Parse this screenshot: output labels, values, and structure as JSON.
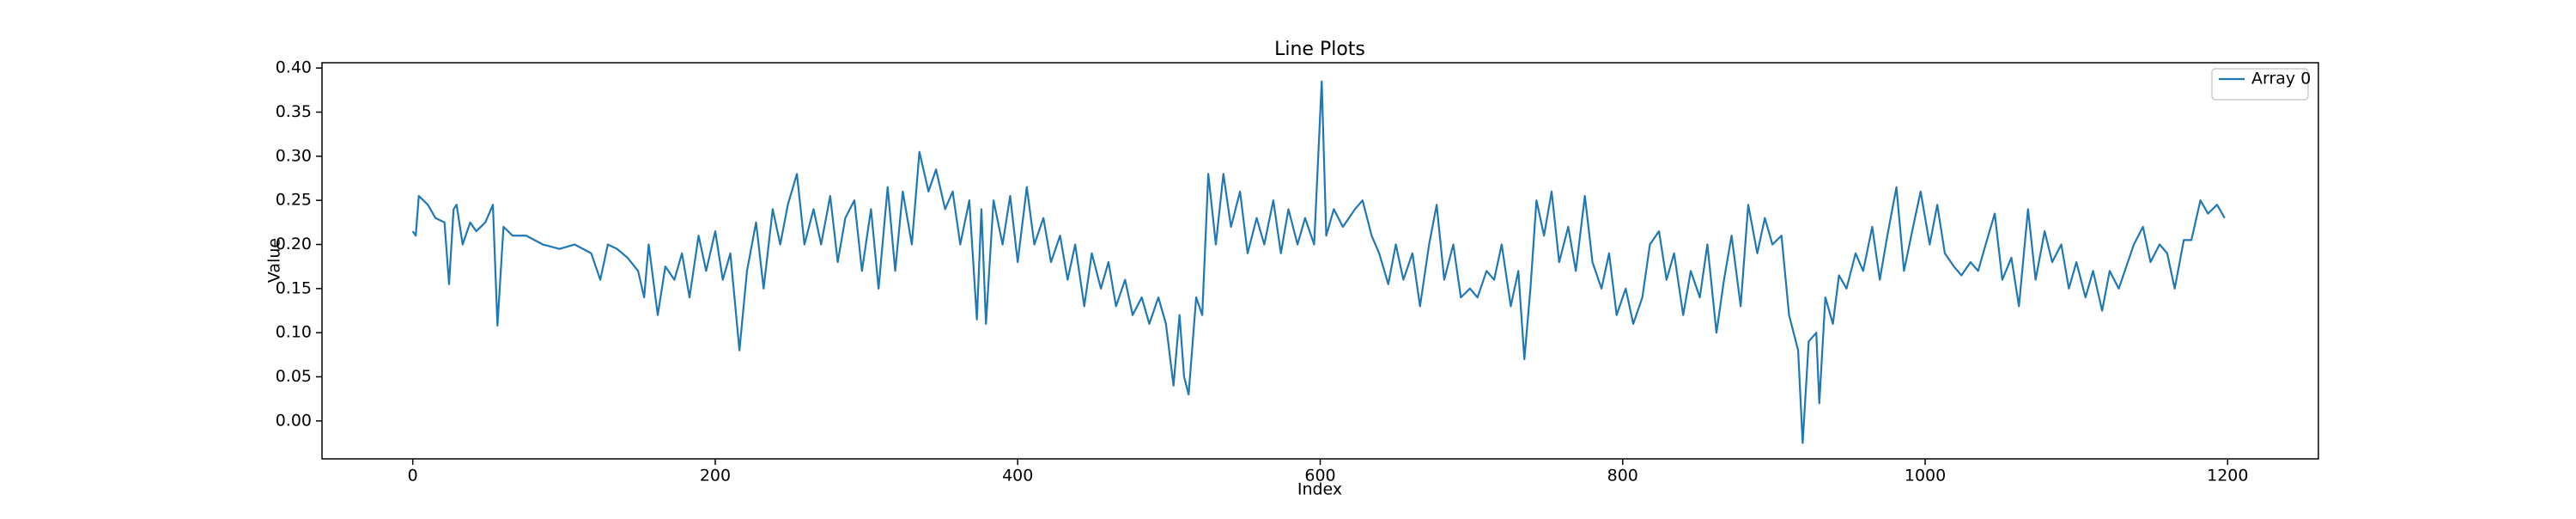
{
  "chart_data": {
    "type": "line",
    "title": "Line Plots",
    "x_label": "Index",
    "y_label": "Value",
    "xlim": [
      -60,
      1260
    ],
    "ylim": [
      -0.043,
      0.406
    ],
    "xticks": [
      0,
      200,
      400,
      600,
      800,
      1000,
      1200
    ],
    "yticks": [
      {
        "value": 0,
        "label": "0.00"
      },
      {
        "value": 0.05,
        "label": "0.05"
      },
      {
        "value": 0.1,
        "label": "0.10"
      },
      {
        "value": 0.15,
        "label": "0.15"
      },
      {
        "value": 0.2,
        "label": "0.20"
      },
      {
        "value": 0.25,
        "label": "0.25"
      },
      {
        "value": 0.3,
        "label": "0.30"
      },
      {
        "value": 0.35,
        "label": "0.35"
      },
      {
        "value": 0.4,
        "label": "0.40"
      }
    ],
    "legend": "upper right",
    "grid": false,
    "x": [
      0,
      2,
      4,
      10,
      15,
      21,
      24,
      27,
      29,
      33,
      38,
      42,
      48,
      53,
      56,
      60,
      66,
      75,
      86,
      97,
      107,
      118,
      124,
      129,
      135,
      142,
      149,
      153,
      156,
      162,
      167,
      173,
      178,
      183,
      189,
      194,
      200,
      205,
      210,
      216,
      221,
      227,
      232,
      238,
      243,
      248,
      254,
      259,
      265,
      270,
      276,
      281,
      286,
      292,
      297,
      303,
      308,
      314,
      319,
      324,
      330,
      335,
      341,
      346,
      352,
      357,
      362,
      368,
      373,
      376,
      379,
      384,
      390,
      395,
      400,
      406,
      411,
      417,
      422,
      428,
      433,
      438,
      444,
      449,
      455,
      460,
      465,
      471,
      476,
      482,
      487,
      493,
      498,
      503,
      507,
      510,
      513,
      518,
      522,
      526,
      531,
      536,
      541,
      547,
      552,
      558,
      563,
      569,
      574,
      579,
      585,
      590,
      596,
      601,
      604,
      609,
      615,
      623,
      628,
      634,
      639,
      645,
      650,
      655,
      661,
      666,
      672,
      677,
      682,
      688,
      693,
      699,
      704,
      710,
      715,
      720,
      726,
      731,
      735,
      739,
      743,
      748,
      753,
      758,
      764,
      769,
      775,
      780,
      786,
      791,
      796,
      802,
      807,
      813,
      818,
      824,
      829,
      834,
      840,
      845,
      851,
      856,
      862,
      867,
      872,
      878,
      883,
      889,
      894,
      899,
      905,
      910,
      916,
      919,
      923,
      928,
      930,
      934,
      939,
      943,
      948,
      954,
      959,
      965,
      970,
      975,
      981,
      986,
      992,
      997,
      1003,
      1008,
      1013,
      1019,
      1024,
      1030,
      1035,
      1040,
      1046,
      1051,
      1057,
      1062,
      1068,
      1073,
      1079,
      1084,
      1090,
      1095,
      1100,
      1106,
      1111,
      1117,
      1122,
      1128,
      1133,
      1138,
      1144,
      1149,
      1155,
      1160,
      1165,
      1171,
      1176,
      1182,
      1187,
      1193,
      1198
    ],
    "series": [
      {
        "name": "Array 0",
        "color": "#1f77b4",
        "values": [
          0.215,
          0.21,
          0.255,
          0.245,
          0.23,
          0.225,
          0.155,
          0.24,
          0.245,
          0.2,
          0.225,
          0.215,
          0.225,
          0.245,
          0.108,
          0.22,
          0.21,
          0.21,
          0.2,
          0.195,
          0.2,
          0.19,
          0.16,
          0.2,
          0.195,
          0.185,
          0.17,
          0.14,
          0.2,
          0.12,
          0.175,
          0.16,
          0.19,
          0.14,
          0.21,
          0.17,
          0.215,
          0.16,
          0.19,
          0.08,
          0.17,
          0.225,
          0.15,
          0.24,
          0.2,
          0.245,
          0.28,
          0.2,
          0.24,
          0.2,
          0.255,
          0.18,
          0.23,
          0.25,
          0.17,
          0.24,
          0.15,
          0.265,
          0.17,
          0.26,
          0.2,
          0.305,
          0.26,
          0.285,
          0.24,
          0.26,
          0.2,
          0.25,
          0.115,
          0.24,
          0.11,
          0.25,
          0.2,
          0.255,
          0.18,
          0.265,
          0.2,
          0.23,
          0.18,
          0.21,
          0.16,
          0.2,
          0.13,
          0.19,
          0.15,
          0.18,
          0.13,
          0.16,
          0.12,
          0.14,
          0.11,
          0.14,
          0.11,
          0.04,
          0.12,
          0.05,
          0.03,
          0.14,
          0.12,
          0.28,
          0.2,
          0.28,
          0.22,
          0.26,
          0.19,
          0.23,
          0.2,
          0.25,
          0.19,
          0.24,
          0.2,
          0.23,
          0.2,
          0.385,
          0.21,
          0.24,
          0.22,
          0.24,
          0.25,
          0.21,
          0.19,
          0.155,
          0.2,
          0.16,
          0.19,
          0.13,
          0.2,
          0.245,
          0.16,
          0.2,
          0.14,
          0.15,
          0.14,
          0.17,
          0.16,
          0.2,
          0.13,
          0.17,
          0.07,
          0.15,
          0.25,
          0.21,
          0.26,
          0.18,
          0.22,
          0.17,
          0.255,
          0.18,
          0.15,
          0.19,
          0.12,
          0.15,
          0.11,
          0.14,
          0.2,
          0.215,
          0.16,
          0.19,
          0.12,
          0.17,
          0.14,
          0.2,
          0.1,
          0.16,
          0.21,
          0.13,
          0.245,
          0.19,
          0.23,
          0.2,
          0.21,
          0.12,
          0.08,
          -0.025,
          0.09,
          0.1,
          0.02,
          0.14,
          0.11,
          0.165,
          0.15,
          0.19,
          0.17,
          0.22,
          0.16,
          0.21,
          0.265,
          0.17,
          0.22,
          0.26,
          0.2,
          0.245,
          0.19,
          0.175,
          0.165,
          0.18,
          0.17,
          0.2,
          0.235,
          0.16,
          0.185,
          0.13,
          0.24,
          0.16,
          0.215,
          0.18,
          0.2,
          0.15,
          0.18,
          0.14,
          0.17,
          0.125,
          0.17,
          0.15,
          0.175,
          0.2,
          0.22,
          0.18,
          0.2,
          0.19,
          0.15,
          0.205,
          0.205,
          0.25,
          0.235,
          0.245,
          0.23
        ]
      }
    ]
  }
}
